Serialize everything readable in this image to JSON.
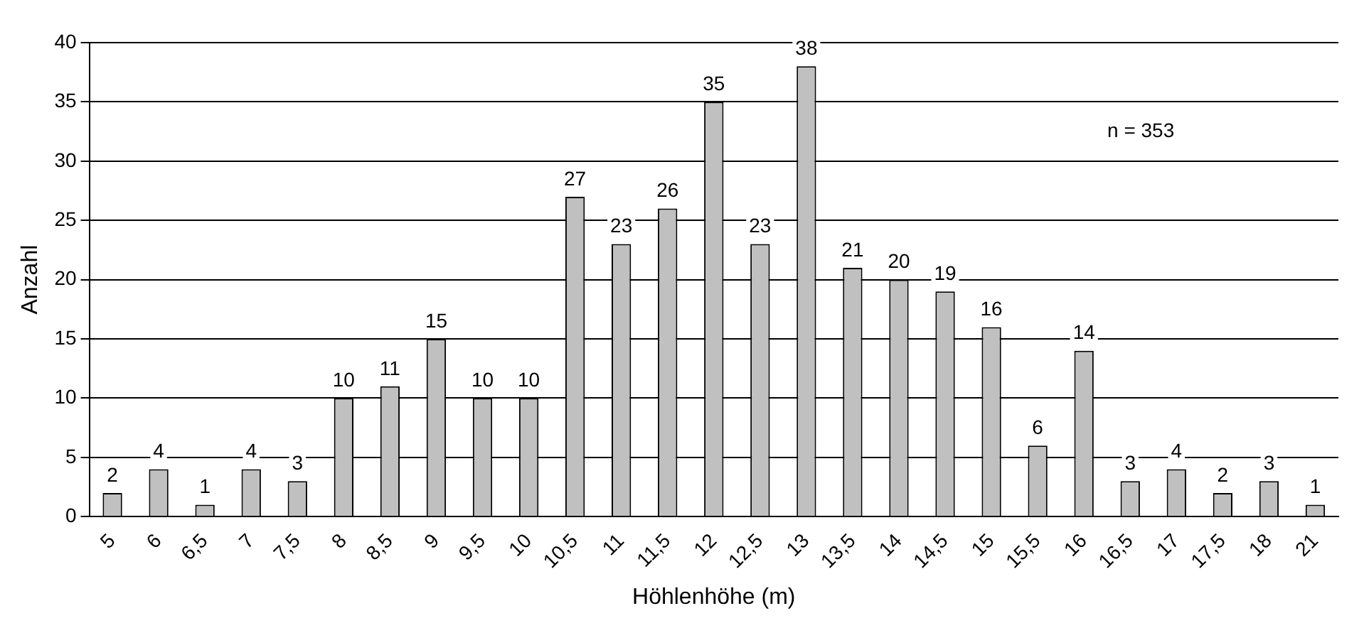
{
  "chart_data": {
    "type": "bar",
    "xlabel": "Höhlenhöhe (m)",
    "ylabel": "Anzahl",
    "categories": [
      "5",
      "6",
      "6,5",
      "7",
      "7,5",
      "8",
      "8,5",
      "9",
      "9,5",
      "10",
      "10,5",
      "11",
      "11,5",
      "12",
      "12,5",
      "13",
      "13,5",
      "14",
      "14,5",
      "15",
      "15,5",
      "16",
      "16,5",
      "17",
      "17,5",
      "18",
      "21"
    ],
    "values": [
      2,
      4,
      1,
      4,
      3,
      10,
      11,
      15,
      10,
      10,
      27,
      23,
      26,
      35,
      23,
      38,
      21,
      20,
      19,
      16,
      6,
      14,
      3,
      4,
      2,
      3,
      1
    ],
    "color": "#c0c0c0",
    "ylim": [
      0,
      40
    ],
    "yticks": [
      0,
      5,
      10,
      15,
      20,
      25,
      30,
      35,
      40
    ],
    "grid": "y",
    "data_labels": true,
    "legend": false,
    "annotations": [
      "n = 353"
    ]
  }
}
